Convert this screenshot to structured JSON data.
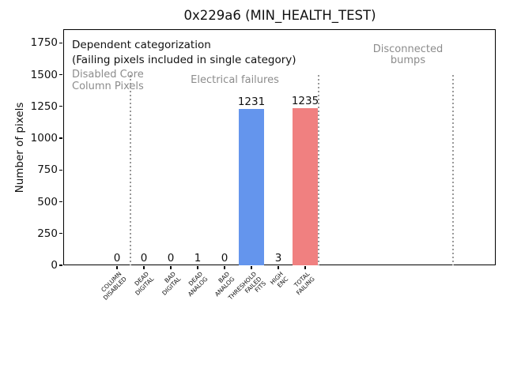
{
  "chart_data": {
    "type": "bar",
    "title": "0x229a6 (MIN_HEALTH_TEST)",
    "ylabel": "Number of pixels",
    "xlabel": "",
    "categories": [
      "COLUMN\nDISABLED",
      "DEAD\nDIGITAL",
      "BAD\nDIGITAL",
      "DEAD\nANALOG",
      "BAD\nANALOG",
      "THRESHOLD\nFAILED\nFITS",
      "HIGH\nENC",
      "TOTAL\nFAILING"
    ],
    "values": [
      0,
      0,
      0,
      1,
      0,
      1231,
      3,
      1235
    ],
    "bar_colors": [
      null,
      null,
      null,
      null,
      null,
      "#6495ed",
      null,
      "#f08080"
    ],
    "y_ticks": [
      0,
      250,
      500,
      750,
      1000,
      1250,
      1500,
      1750
    ],
    "ylim": [
      0,
      1855
    ],
    "grid": false,
    "legend": null,
    "separators_at_category_boundaries": [
      0.5,
      7.5,
      12.5
    ],
    "annotations": {
      "dependent_line1": "Dependent categorization",
      "dependent_line2": "(Failing pixels included in single category)",
      "region_disabled_core": "Disabled Core\nColumn Pixels",
      "region_electrical": "Electrical failures",
      "region_disconnected": "Disconnected\nbumps"
    },
    "colors": {
      "highlight_blue": "#6495ed",
      "highlight_red": "#f08080",
      "annotation_gray": "#8c8c8c",
      "separator_gray": "#999999",
      "axis_black": "#000000"
    }
  }
}
